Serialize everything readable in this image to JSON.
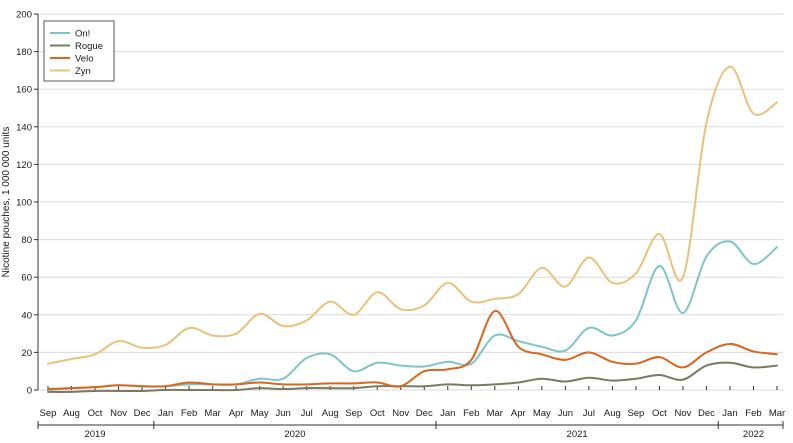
{
  "chart_data": {
    "type": "line",
    "ylabel": "Nicotine pouches, 1 000 000 units",
    "xlabel": "",
    "ylim": [
      0,
      200
    ],
    "yticks": [
      0,
      20,
      40,
      60,
      80,
      100,
      120,
      140,
      160,
      180,
      200
    ],
    "grid": "horizontal",
    "legend_position": "top-left",
    "categories": [
      "Sep",
      "Aug",
      "Oct",
      "Nov",
      "Dec",
      "Jan",
      "Feb",
      "Mar",
      "Apr",
      "May",
      "Jun",
      "Jul",
      "Aug",
      "Sep",
      "Oct",
      "Nov",
      "Dec",
      "Jan",
      "Feb",
      "Mar",
      "Apr",
      "May",
      "Jun",
      "Jul",
      "Aug",
      "Sep",
      "Oct",
      "Nov",
      "Dec",
      "Jan",
      "Feb",
      "Mar"
    ],
    "year_groups": [
      {
        "label": "2019",
        "start": 0,
        "end": 4
      },
      {
        "label": "2020",
        "start": 5,
        "end": 16
      },
      {
        "label": "2021",
        "start": 17,
        "end": 28
      },
      {
        "label": "2022",
        "start": 29,
        "end": 31
      }
    ],
    "series": [
      {
        "name": "On!",
        "color": "#7fc4c8",
        "values": [
          0,
          1,
          1.5,
          2.5,
          2,
          2,
          3,
          3,
          3,
          6,
          6,
          17,
          19,
          10,
          14.5,
          13,
          12.5,
          15,
          14,
          29,
          26,
          23,
          21,
          33,
          29,
          37,
          66,
          41,
          71,
          79,
          67,
          76
        ]
      },
      {
        "name": "Rogue",
        "color": "#7a7a63",
        "values": [
          -1,
          -1,
          -0.5,
          -0.5,
          -0.5,
          0,
          0,
          0,
          0,
          1,
          0.5,
          1,
          1,
          1,
          2,
          2,
          2,
          3,
          2.5,
          3,
          4,
          6,
          4.5,
          6.5,
          5,
          6,
          8,
          5.5,
          13,
          14.5,
          12,
          13
        ]
      },
      {
        "name": "Velo",
        "color": "#d9661f",
        "values": [
          0.5,
          1,
          1.5,
          2.5,
          2,
          2,
          4,
          3,
          3,
          4,
          3,
          3,
          3.5,
          3.5,
          4,
          2,
          10,
          11,
          16,
          42,
          23,
          19,
          16,
          20,
          15,
          14,
          17.5,
          12,
          20,
          24.5,
          20.5,
          19
        ]
      },
      {
        "name": "Zyn",
        "color": "#e9c17a",
        "values": [
          14,
          16.5,
          19,
          26,
          22.5,
          24,
          33,
          29,
          30,
          40.5,
          34,
          37,
          47,
          40,
          52,
          43,
          45,
          57,
          47,
          48.5,
          51,
          65,
          55,
          70.5,
          57,
          62,
          83,
          60,
          142,
          172,
          147,
          153
        ]
      }
    ]
  }
}
